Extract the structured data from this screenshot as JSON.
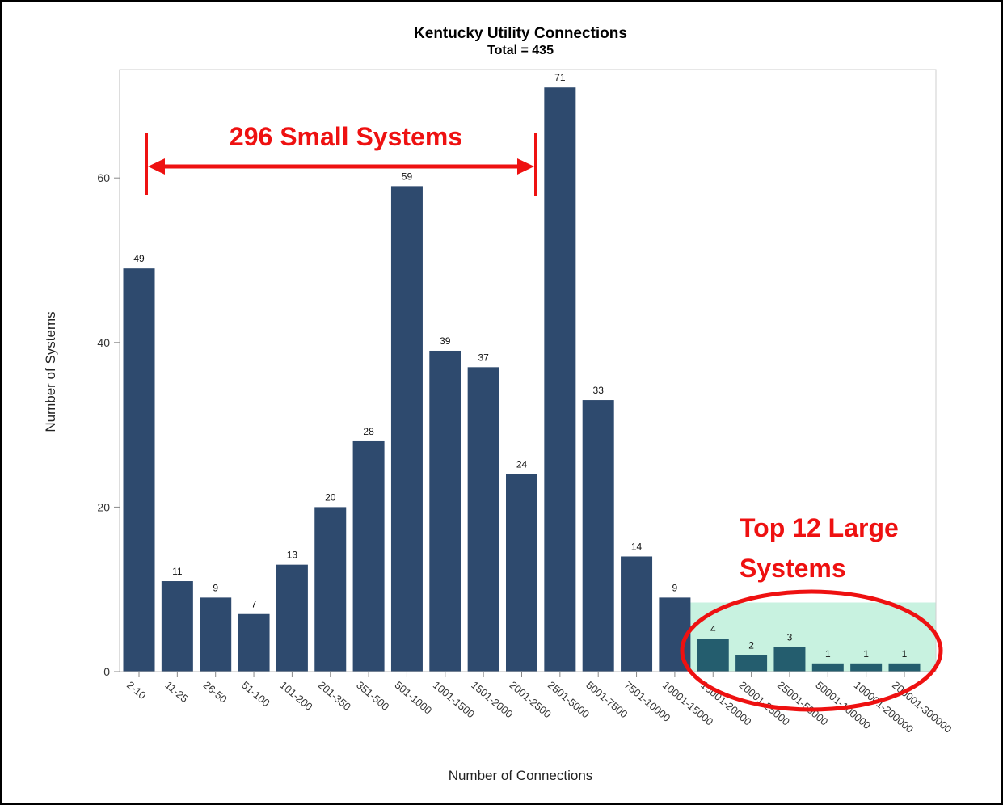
{
  "chart_data": {
    "type": "bar",
    "title": "Kentucky Utility Connections",
    "subtitle": "Total = 435",
    "xlabel": "Number of Connections",
    "ylabel": "Number of Systems",
    "ylim": [
      0,
      75
    ],
    "yticks": [
      0,
      20,
      40,
      60
    ],
    "grid": false,
    "categories": [
      "2-10",
      "11-25",
      "26-50",
      "51-100",
      "101-200",
      "201-350",
      "351-500",
      "501-1000",
      "1001-1500",
      "1501-2000",
      "2001-2500",
      "2501-5000",
      "5001-7500",
      "7501-10000",
      "10001-15000",
      "15001-20000",
      "20001-25000",
      "25001-50000",
      "50001-100000",
      "100001-200000",
      "200001-300000"
    ],
    "values": [
      49,
      11,
      9,
      7,
      13,
      20,
      28,
      59,
      39,
      37,
      24,
      71,
      33,
      14,
      9,
      4,
      2,
      3,
      1,
      1,
      1
    ],
    "bar_color": "#2e4a6e",
    "highlight_color": "#245d6e",
    "highlight_fill": "#c8f2e0",
    "annotations": {
      "small_systems": "296 Small Systems",
      "large_systems_line1": "Top 12 Large",
      "large_systems_line2": "Systems",
      "color": "#ee1111"
    }
  }
}
